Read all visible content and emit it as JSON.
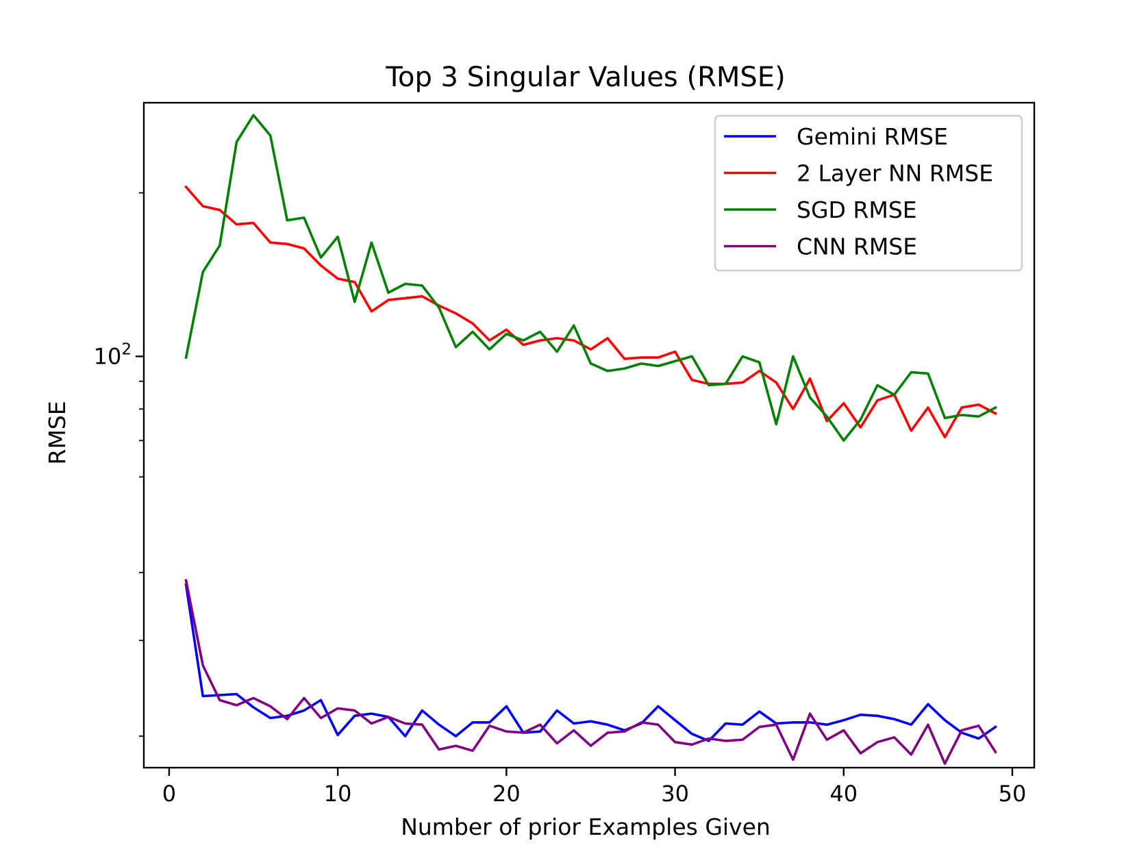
{
  "chart_data": {
    "type": "line",
    "title": "Top 3 Singular Values (RMSE)",
    "xlabel": "Number of prior Examples Given",
    "ylabel": "RMSE",
    "yscale": "log",
    "xlim": [
      -1.5,
      51.3
    ],
    "ylim": [
      17.5,
      293
    ],
    "grid": false,
    "legend_position": "top-right",
    "x_ticks": [
      0,
      10,
      20,
      30,
      40,
      50
    ],
    "x_tick_labels": [
      "0",
      "10",
      "20",
      "30",
      "40",
      "50"
    ],
    "y_major_tick": {
      "value": 100,
      "base": "10",
      "exponent": "2"
    },
    "y_minor_ticks": [
      20,
      30,
      40,
      60,
      70,
      80,
      90,
      200
    ],
    "x": [
      1,
      2,
      3,
      4,
      5,
      6,
      7,
      8,
      9,
      10,
      11,
      12,
      13,
      14,
      15,
      16,
      17,
      18,
      19,
      20,
      21,
      22,
      23,
      24,
      25,
      26,
      27,
      28,
      29,
      30,
      31,
      32,
      33,
      34,
      35,
      36,
      37,
      38,
      39,
      40,
      41,
      42,
      43,
      44,
      45,
      46,
      47,
      48,
      49
    ],
    "series": [
      {
        "name": "Gemini RMSE",
        "color": "#0000ff",
        "values": [
          38.0,
          23.7,
          23.8,
          23.9,
          22.6,
          21.6,
          21.8,
          22.3,
          23.3,
          20.1,
          21.8,
          22.0,
          21.7,
          20.0,
          22.3,
          21.0,
          20.0,
          21.2,
          21.2,
          22.7,
          20.3,
          20.4,
          22.3,
          21.1,
          21.3,
          21.0,
          20.5,
          21.1,
          22.7,
          21.4,
          20.2,
          19.6,
          21.1,
          21.0,
          22.2,
          21.1,
          21.2,
          21.2,
          21.0,
          21.4,
          21.9,
          21.8,
          21.5,
          21.0,
          22.9,
          21.4,
          20.3,
          19.8,
          20.8
        ]
      },
      {
        "name": "2 Layer NN RMSE",
        "color": "#ff0000",
        "values": [
          205,
          189,
          186,
          175,
          176,
          162,
          161,
          158,
          147,
          139,
          137,
          121,
          127,
          128,
          129,
          124,
          120,
          115,
          107,
          112,
          105,
          107,
          108,
          107,
          103,
          108,
          99.0,
          99.5,
          99.5,
          102,
          90.5,
          89.0,
          89.0,
          89.5,
          94.0,
          89.5,
          80.0,
          91.0,
          76.0,
          82.0,
          74.0,
          83.0,
          85.0,
          73.0,
          80.5,
          71.0,
          80.5,
          81.5,
          78.5
        ]
      },
      {
        "name": "SGD RMSE",
        "color": "#008000",
        "values": [
          99.5,
          143,
          160,
          248,
          278,
          255,
          178,
          180,
          152,
          166,
          126,
          162,
          131,
          136,
          135,
          123,
          104,
          111,
          103,
          110,
          107,
          111,
          102,
          114,
          97.0,
          94.0,
          95.0,
          97.0,
          96.0,
          98.0,
          100,
          88.5,
          89.0,
          100,
          97.5,
          75.0,
          100,
          84.0,
          77.5,
          70.0,
          76.5,
          88.5,
          85.0,
          93.5,
          93.0,
          77.0,
          78.0,
          77.5,
          80.5
        ]
      },
      {
        "name": "CNN RMSE",
        "color": "#800080",
        "values": [
          38.7,
          27.0,
          23.3,
          22.8,
          23.5,
          22.7,
          21.5,
          23.5,
          21.6,
          22.5,
          22.3,
          21.1,
          21.7,
          21.1,
          21.0,
          18.9,
          19.2,
          18.8,
          20.9,
          20.4,
          20.3,
          21.0,
          19.4,
          20.5,
          19.2,
          20.3,
          20.4,
          21.2,
          21.0,
          19.5,
          19.3,
          19.8,
          19.6,
          19.7,
          20.8,
          21.0,
          18.1,
          22.0,
          19.7,
          20.5,
          18.6,
          19.5,
          19.9,
          18.5,
          21.0,
          17.8,
          20.5,
          20.9,
          18.7
        ]
      }
    ]
  }
}
